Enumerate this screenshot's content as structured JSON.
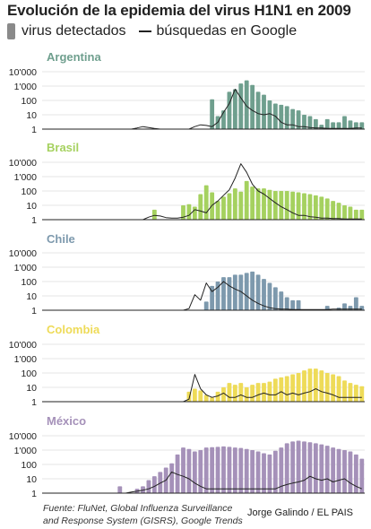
{
  "title": "Evolución de la epidemia del virus H1N1 en 2009",
  "legend": {
    "bars_label": "virus detectados",
    "line_label": "búsquedas en Google",
    "line_marker": "—"
  },
  "source": {
    "line1": "Fuente: FluNet, Global Influenza Surveillance",
    "line2": "and Response System (GISRS), Google Trends"
  },
  "credit": "Jorge Galindo / EL PAIS",
  "colors": {
    "argentina": "#6f9f8e",
    "brasil": "#a5d15f",
    "chile": "#7d99ad",
    "colombia": "#eedb58",
    "mexico": "#a591b9",
    "line": "#222222",
    "axis": "#222222"
  },
  "chart_data": [
    {
      "type": "bar",
      "panel_title": "Argentina",
      "color_key": "argentina",
      "y_scale": "log",
      "ylim": [
        1,
        10000
      ],
      "y_ticks": [
        "1",
        "10",
        "100",
        "1'000",
        "10'000"
      ],
      "series": [
        {
          "name": "virus detectados",
          "type": "bar",
          "values": [
            0,
            0,
            0,
            0,
            0,
            0,
            0,
            0,
            0,
            0,
            0,
            0,
            0,
            0,
            0,
            0,
            0,
            0,
            0,
            0,
            0,
            0,
            0,
            0,
            0,
            0,
            0,
            0,
            0,
            120,
            8,
            20,
            400,
            600,
            1500,
            2500,
            1200,
            400,
            250,
            100,
            60,
            50,
            40,
            25,
            20,
            10,
            8,
            5,
            2,
            5,
            3,
            3,
            8,
            4,
            3,
            3
          ]
        },
        {
          "name": "búsquedas en Google",
          "type": "line",
          "values": [
            1,
            1,
            1,
            1,
            1,
            1,
            1,
            1,
            1,
            1,
            1,
            1,
            1,
            1,
            1,
            1,
            1.2,
            1.5,
            1.3,
            1.1,
            1,
            1,
            1,
            1,
            1,
            1,
            1.5,
            2,
            1.8,
            1.5,
            3,
            15,
            60,
            600,
            150,
            40,
            20,
            12,
            10,
            12,
            8,
            3,
            2,
            2,
            1.5,
            1.5,
            1.3,
            1.2,
            1.2,
            1.1,
            1.1,
            1.1,
            1.1,
            1.1,
            1.2,
            1.2
          ]
        }
      ]
    },
    {
      "type": "bar",
      "panel_title": "Brasil",
      "color_key": "brasil",
      "y_scale": "log",
      "ylim": [
        1,
        10000
      ],
      "y_ticks": [
        "1",
        "10",
        "100",
        "1'000",
        "10'000"
      ],
      "series": [
        {
          "name": "virus detectados",
          "type": "bar",
          "values": [
            0,
            0,
            0,
            0,
            0,
            0,
            0,
            0,
            0,
            0,
            0,
            0,
            0,
            0,
            0,
            0,
            0,
            0,
            0,
            5,
            0,
            0,
            0,
            0,
            10,
            12,
            8,
            60,
            250,
            80,
            20,
            40,
            70,
            150,
            90,
            500,
            200,
            150,
            150,
            120,
            100,
            100,
            100,
            90,
            80,
            70,
            60,
            50,
            40,
            30,
            20,
            15,
            10,
            8,
            5,
            5
          ]
        },
        {
          "name": "búsquedas en Google",
          "type": "line",
          "values": [
            1,
            1,
            1,
            1,
            1,
            1,
            1,
            1,
            1,
            1,
            1,
            1,
            1,
            1,
            1,
            1,
            1,
            1,
            1.5,
            2,
            1.8,
            1.4,
            1.3,
            1.3,
            1.5,
            2,
            5,
            4,
            3,
            10,
            20,
            50,
            120,
            800,
            8000,
            2000,
            300,
            100,
            60,
            30,
            15,
            8,
            5,
            3,
            2,
            2,
            1.6,
            1.5,
            1.3,
            1.3,
            1.2,
            1.2,
            1.1,
            1.1,
            1.1,
            1.1
          ]
        }
      ]
    },
    {
      "type": "bar",
      "panel_title": "Chile",
      "color_key": "chile",
      "y_scale": "log",
      "ylim": [
        1,
        10000
      ],
      "y_ticks": [
        "1",
        "10",
        "100",
        "1'000",
        "10'000"
      ],
      "series": [
        {
          "name": "virus detectados",
          "type": "bar",
          "values": [
            0,
            0,
            0,
            0,
            0,
            0,
            0,
            0,
            0,
            0,
            0,
            0,
            0,
            0,
            0,
            0,
            0,
            0,
            0,
            0,
            0,
            0,
            0,
            0,
            0,
            0,
            0,
            0,
            4,
            50,
            100,
            200,
            200,
            300,
            300,
            400,
            500,
            300,
            150,
            80,
            40,
            20,
            8,
            5,
            5,
            0,
            0,
            0,
            0,
            2,
            0,
            1.5,
            3,
            2,
            8,
            2
          ]
        },
        {
          "name": "búsquedas en Google",
          "type": "line",
          "values": [
            1,
            1,
            1,
            1,
            1,
            1,
            1,
            1,
            1,
            1,
            1,
            1,
            1,
            1,
            1,
            1,
            1,
            1,
            1,
            1,
            1,
            1,
            1,
            1,
            1,
            1.3,
            12,
            5,
            80,
            20,
            40,
            100,
            50,
            30,
            20,
            10,
            5,
            3,
            2,
            1.5,
            1.3,
            1.2,
            1.2,
            1.1,
            1.1,
            1.1,
            1.1,
            1.1,
            1.1,
            1.1,
            1.2,
            1.2,
            1.2,
            1.2,
            1.2,
            1.2
          ]
        }
      ]
    },
    {
      "type": "bar",
      "panel_title": "Colombia",
      "color_key": "colombia",
      "y_scale": "log",
      "ylim": [
        1,
        10000
      ],
      "y_ticks": [
        "1",
        "10",
        "100",
        "1'000",
        "10'000"
      ],
      "series": [
        {
          "name": "virus detectados",
          "type": "bar",
          "values": [
            0,
            0,
            0,
            0,
            0,
            0,
            0,
            0,
            0,
            0,
            0,
            0,
            0,
            0,
            0,
            0,
            0,
            0,
            0,
            0,
            0,
            0,
            0,
            0,
            0,
            5,
            8,
            6,
            3,
            2,
            5,
            10,
            20,
            15,
            20,
            10,
            15,
            20,
            20,
            25,
            40,
            50,
            60,
            80,
            100,
            150,
            200,
            200,
            150,
            100,
            80,
            60,
            30,
            20,
            15,
            12
          ]
        },
        {
          "name": "búsquedas en Google",
          "type": "line",
          "values": [
            1,
            1,
            1,
            1,
            1,
            1,
            1,
            1,
            1,
            1,
            1,
            1,
            1,
            1,
            1,
            1,
            1,
            1,
            1,
            1,
            1,
            1,
            1,
            1,
            1,
            1.5,
            80,
            8,
            3,
            2,
            2.5,
            4,
            2,
            2,
            3,
            2,
            2,
            3,
            4,
            3,
            3,
            5,
            3,
            4,
            3,
            4,
            5,
            8,
            5,
            4,
            3,
            2,
            2,
            2,
            2,
            2
          ]
        }
      ]
    },
    {
      "type": "bar",
      "panel_title": "México",
      "color_key": "mexico",
      "y_scale": "log",
      "ylim": [
        1,
        10000
      ],
      "y_ticks": [
        "1",
        "10",
        "100",
        "1'000",
        "10'000"
      ],
      "series": [
        {
          "name": "virus detectados",
          "type": "bar",
          "values": [
            0,
            0,
            0,
            0,
            0,
            0,
            0,
            0,
            0,
            0,
            0,
            0,
            0,
            3,
            0,
            0,
            2,
            3,
            8,
            15,
            30,
            60,
            120,
            500,
            1500,
            1200,
            800,
            1000,
            1500,
            1600,
            1700,
            1800,
            1700,
            1500,
            1400,
            1200,
            1000,
            800,
            600,
            500,
            900,
            1500,
            3000,
            4000,
            4500,
            4000,
            3500,
            3000,
            2500,
            2000,
            1500,
            1200,
            1000,
            800,
            500,
            250
          ]
        },
        {
          "name": "búsquedas en Google",
          "type": "line",
          "values": [
            1,
            1,
            1,
            1,
            1,
            1,
            1,
            1,
            1,
            1,
            1,
            1,
            1,
            1,
            1,
            1.2,
            1.4,
            1.6,
            2,
            3,
            5,
            8,
            30,
            20,
            15,
            10,
            5,
            3,
            2,
            2,
            2,
            2,
            2,
            2,
            2,
            2,
            2,
            2,
            2,
            2,
            2,
            3,
            4,
            5,
            6,
            8,
            15,
            10,
            8,
            10,
            6,
            8,
            10,
            5,
            3,
            2
          ]
        }
      ]
    }
  ]
}
